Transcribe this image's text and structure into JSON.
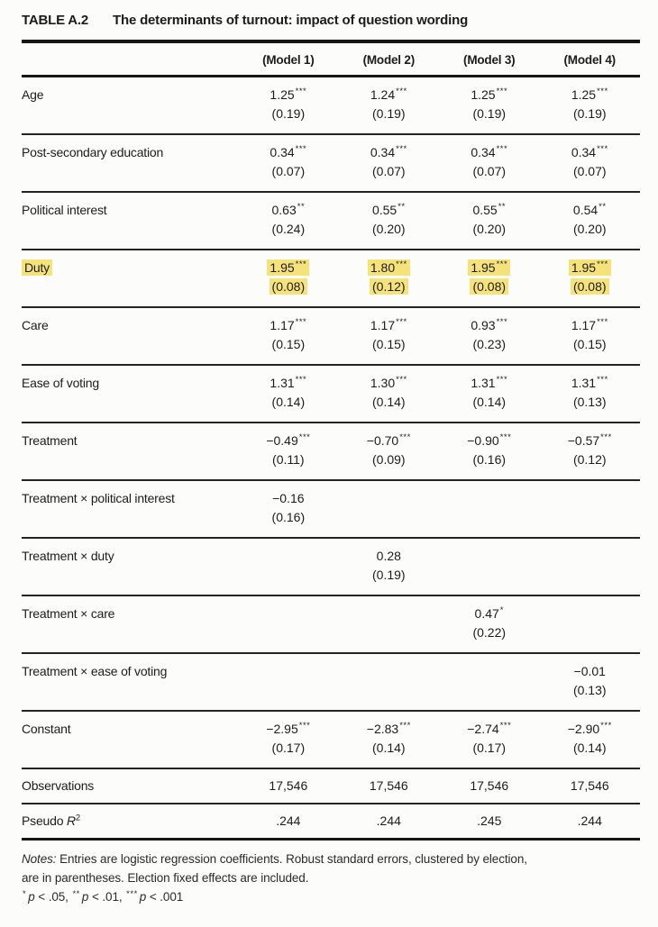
{
  "title": {
    "label": "TABLE A.2",
    "caption": "The determinants of turnout: impact of question wording"
  },
  "table": {
    "highlight_color": "#f5e27b",
    "columns": [
      "(Model 1)",
      "(Model 2)",
      "(Model 3)",
      "(Model 4)"
    ],
    "rows": [
      {
        "label": "Age",
        "highlight": false,
        "cells": [
          {
            "coef": "1.25",
            "stars": "***",
            "se": "(0.19)"
          },
          {
            "coef": "1.24",
            "stars": "***",
            "se": "(0.19)"
          },
          {
            "coef": "1.25",
            "stars": "***",
            "se": "(0.19)"
          },
          {
            "coef": "1.25",
            "stars": "***",
            "se": "(0.19)"
          }
        ]
      },
      {
        "label": "Post-secondary education",
        "highlight": false,
        "cells": [
          {
            "coef": "0.34",
            "stars": "***",
            "se": "(0.07)"
          },
          {
            "coef": "0.34",
            "stars": "***",
            "se": "(0.07)"
          },
          {
            "coef": "0.34",
            "stars": "***",
            "se": "(0.07)"
          },
          {
            "coef": "0.34",
            "stars": "***",
            "se": "(0.07)"
          }
        ]
      },
      {
        "label": "Political interest",
        "highlight": false,
        "cells": [
          {
            "coef": "0.63",
            "stars": "**",
            "se": "(0.24)"
          },
          {
            "coef": "0.55",
            "stars": "**",
            "se": "(0.20)"
          },
          {
            "coef": "0.55",
            "stars": "**",
            "se": "(0.20)"
          },
          {
            "coef": "0.54",
            "stars": "**",
            "se": "(0.20)"
          }
        ]
      },
      {
        "label": "Duty",
        "highlight": true,
        "cells": [
          {
            "coef": "1.95",
            "stars": "***",
            "se": "(0.08)"
          },
          {
            "coef": "1.80",
            "stars": "***",
            "se": "(0.12)"
          },
          {
            "coef": "1.95",
            "stars": "***",
            "se": "(0.08)"
          },
          {
            "coef": "1.95",
            "stars": "***",
            "se": "(0.08)"
          }
        ]
      },
      {
        "label": "Care",
        "highlight": false,
        "cells": [
          {
            "coef": "1.17",
            "stars": "***",
            "se": "(0.15)"
          },
          {
            "coef": "1.17",
            "stars": "***",
            "se": "(0.15)"
          },
          {
            "coef": "0.93",
            "stars": "***",
            "se": "(0.23)"
          },
          {
            "coef": "1.17",
            "stars": "***",
            "se": "(0.15)"
          }
        ]
      },
      {
        "label": "Ease of voting",
        "highlight": false,
        "cells": [
          {
            "coef": "1.31",
            "stars": "***",
            "se": "(0.14)"
          },
          {
            "coef": "1.30",
            "stars": "***",
            "se": "(0.14)"
          },
          {
            "coef": "1.31",
            "stars": "***",
            "se": "(0.14)"
          },
          {
            "coef": "1.31",
            "stars": "***",
            "se": "(0.13)"
          }
        ]
      },
      {
        "label": "Treatment",
        "highlight": false,
        "cells": [
          {
            "coef": "−0.49",
            "stars": "***",
            "se": "(0.11)"
          },
          {
            "coef": "−0.70",
            "stars": "***",
            "se": "(0.09)"
          },
          {
            "coef": "−0.90",
            "stars": "***",
            "se": "(0.16)"
          },
          {
            "coef": "−0.57",
            "stars": "***",
            "se": "(0.12)"
          }
        ]
      },
      {
        "label": "Treatment × political interest",
        "highlight": false,
        "cells": [
          {
            "coef": "−0.16",
            "stars": "",
            "se": "(0.16)"
          },
          null,
          null,
          null
        ]
      },
      {
        "label": "Treatment × duty",
        "highlight": false,
        "cells": [
          null,
          {
            "coef": "0.28",
            "stars": "",
            "se": "(0.19)"
          },
          null,
          null
        ]
      },
      {
        "label": "Treatment × care",
        "highlight": false,
        "cells": [
          null,
          null,
          {
            "coef": "0.47",
            "stars": "*",
            "se": "(0.22)"
          },
          null
        ]
      },
      {
        "label": "Treatment × ease of voting",
        "highlight": false,
        "cells": [
          null,
          null,
          null,
          {
            "coef": "−0.01",
            "stars": "",
            "se": "(0.13)"
          }
        ]
      },
      {
        "label": "Constant",
        "highlight": false,
        "cells": [
          {
            "coef": "−2.95",
            "stars": "***",
            "se": "(0.17)"
          },
          {
            "coef": "−2.83",
            "stars": "***",
            "se": "(0.14)"
          },
          {
            "coef": "−2.74",
            "stars": "***",
            "se": "(0.17)"
          },
          {
            "coef": "−2.90",
            "stars": "***",
            "se": "(0.14)"
          }
        ]
      }
    ],
    "summary_rows": [
      {
        "label": "Observations",
        "values": [
          "17,546",
          "17,546",
          "17,546",
          "17,546"
        ]
      },
      {
        "label_prefix": "Pseudo ",
        "label_symbol": "R",
        "label_sup": "2",
        "values": [
          ".244",
          ".244",
          ".245",
          ".244"
        ]
      }
    ]
  },
  "notes": {
    "label": "Notes:",
    "line1": "Entries are logistic regression coefficients. Robust standard errors, clustered by election,",
    "line2": "are in parentheses. Election fixed effects are included.",
    "significance": [
      {
        "stars": "*",
        "variable": "p",
        "comparison": "< .05,"
      },
      {
        "stars": "**",
        "variable": "p",
        "comparison": "< .01,"
      },
      {
        "stars": "***",
        "variable": "p",
        "comparison": "< .001"
      }
    ]
  }
}
